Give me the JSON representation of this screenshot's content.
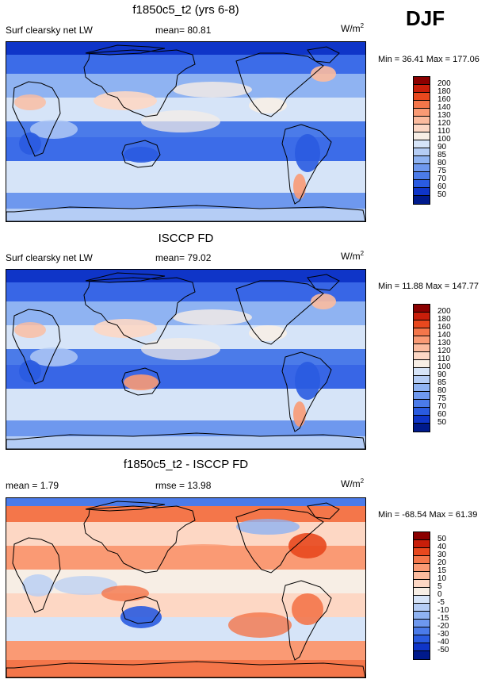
{
  "season": "DJF",
  "panels": [
    {
      "title": "f1850c5_t2 (yrs 6-8)",
      "left_label": "Surf clearsky net LW",
      "center_label": "mean=  80.81",
      "units_base": "W/m",
      "units_exp": "2",
      "minmax": "Min =  36.41 Max = 177.06",
      "levels": [
        "200",
        "180",
        "160",
        "140",
        "130",
        "120",
        "110",
        "100",
        "90",
        "85",
        "80",
        "75",
        "70",
        "60",
        "50"
      ],
      "colors": [
        "#8b0000",
        "#c81e0a",
        "#e8481e",
        "#f4764a",
        "#fa9a74",
        "#fcbb9e",
        "#fdd7c4",
        "#f7eee5",
        "#d6e4f8",
        "#b5cdf5",
        "#8fb3f2",
        "#6e98ee",
        "#4b7be9",
        "#2a5be0",
        "#0f35c8",
        "#001a8c"
      ],
      "field": "net",
      "sea_color": "#3c6ce8"
    },
    {
      "title": "ISCCP FD",
      "left_label": "Surf clearsky net LW",
      "center_label": "mean=  79.02",
      "units_base": "W/m",
      "units_exp": "2",
      "minmax": "Min =  11.88 Max = 147.77",
      "levels": [
        "200",
        "180",
        "160",
        "140",
        "130",
        "120",
        "110",
        "100",
        "90",
        "85",
        "80",
        "75",
        "70",
        "60",
        "50"
      ],
      "colors": [
        "#8b0000",
        "#c81e0a",
        "#e8481e",
        "#f4764a",
        "#fa9a74",
        "#fcbb9e",
        "#fdd7c4",
        "#f7eee5",
        "#d6e4f8",
        "#b5cdf5",
        "#8fb3f2",
        "#6e98ee",
        "#4b7be9",
        "#2a5be0",
        "#0f35c8",
        "#001a8c"
      ],
      "field": "net",
      "sea_color": "#3866e6"
    },
    {
      "title": "f1850c5_t2 - ISCCP FD",
      "left_label": "mean =   1.79",
      "center_label": "rmse =  13.98",
      "units_base": "W/m",
      "units_exp": "2",
      "minmax": "Min = -68.54 Max =  61.39",
      "levels": [
        "50",
        "40",
        "30",
        "20",
        "15",
        "10",
        "5",
        "0",
        "-5",
        "-10",
        "-15",
        "-20",
        "-30",
        "-40",
        "-50"
      ],
      "colors": [
        "#8b0000",
        "#c81e0a",
        "#e8481e",
        "#f4764a",
        "#fa9a74",
        "#fcbb9e",
        "#fdd7c4",
        "#f7eee5",
        "#d6e4f8",
        "#b5cdf5",
        "#8fb3f2",
        "#6e98ee",
        "#4b7be9",
        "#2a5be0",
        "#0f35c8",
        "#001a8c"
      ],
      "field": "diff",
      "sea_color": "#b5cdf5"
    }
  ]
}
